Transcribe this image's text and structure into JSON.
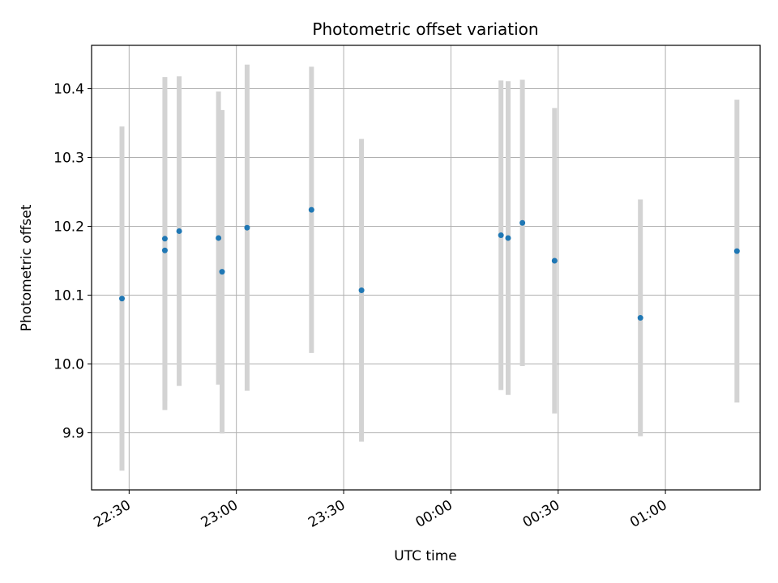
{
  "chart_data": {
    "type": "scatter",
    "title": "Photometric offset variation",
    "xlabel": "UTC time",
    "ylabel": "Photometric offset",
    "x_tick_labels": [
      "22:30",
      "23:00",
      "23:30",
      "00:00",
      "00:30",
      "01:00"
    ],
    "y_tick_labels": [
      "9.9",
      "10.0",
      "10.1",
      "10.2",
      "10.3",
      "10.4"
    ],
    "y_ticks": [
      9.9,
      10.0,
      10.1,
      10.2,
      10.3,
      10.4
    ],
    "xlim": [
      "22:19:30",
      "01:26:30"
    ],
    "ylim": [
      9.817,
      10.463
    ],
    "grid": true,
    "point_color": "#1f77b4",
    "errorbar_color": "#d3d3d3",
    "series": [
      {
        "x": [
          "22:28",
          "22:40",
          "22:40",
          "22:44",
          "22:55",
          "22:56",
          "23:03",
          "23:21",
          "23:35",
          "00:14",
          "00:16",
          "00:20",
          "00:29",
          "00:53",
          "01:20"
        ],
        "y": [
          10.095,
          10.182,
          10.165,
          10.193,
          10.183,
          10.134,
          10.198,
          10.224,
          10.107,
          10.187,
          10.183,
          10.205,
          10.15,
          10.067,
          10.164
        ],
        "yerr": [
          0.25,
          0.235,
          0.232,
          0.225,
          0.213,
          0.235,
          0.237,
          0.208,
          0.22,
          0.225,
          0.228,
          0.208,
          0.222,
          0.172,
          0.22
        ]
      }
    ]
  }
}
